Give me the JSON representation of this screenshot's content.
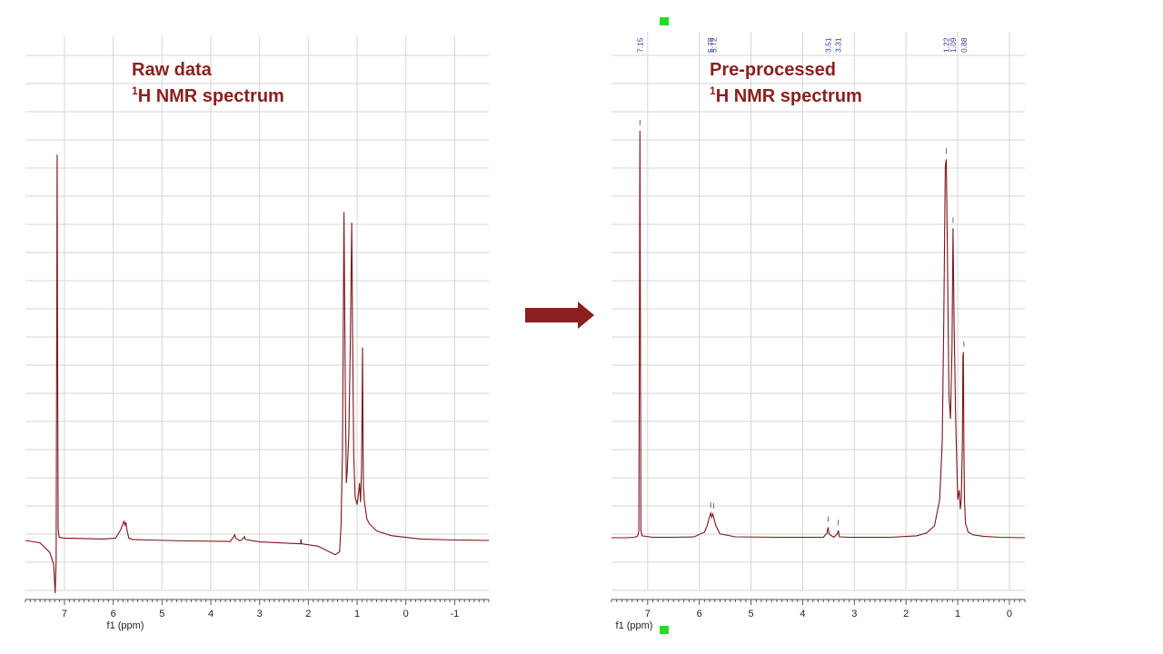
{
  "colors": {
    "spectrum": "#7b1418",
    "title": "#8b2020",
    "arrow": "#8b2020",
    "grid": "#d6d6d6",
    "peak_label": "#3a3aa0",
    "marker": "#22dd22"
  },
  "icons": {
    "arrow": "right-arrow-icon",
    "marker": "green-square-marker-icon"
  },
  "chart_data": [
    {
      "type": "line",
      "title_line1": "Raw data",
      "title_line2_sup": "1",
      "title_line2": "H NMR spectrum",
      "xlabel": "f1 (ppm)",
      "x_reversed": true,
      "xlim": [
        7.8,
        -1.7
      ],
      "ylim": [
        -12,
        100
      ],
      "xticks": [
        7,
        6,
        5,
        4,
        3,
        2,
        1,
        0,
        -1
      ],
      "xtick_labels": [
        "7",
        "6",
        "5",
        "4",
        "3",
        "2",
        "1",
        "0",
        "-1"
      ],
      "grid": true,
      "series": [
        {
          "x": [
            7.8,
            7.5,
            7.3,
            7.22,
            7.19,
            7.17,
            7.16,
            7.15,
            7.14,
            7.13,
            7.11,
            7.08,
            7.0,
            6.6,
            6.2,
            5.95,
            5.85,
            5.78,
            5.76,
            5.74,
            5.72,
            5.68,
            5.6,
            5.3,
            4.5,
            3.6,
            3.53,
            3.51,
            3.49,
            3.4,
            3.33,
            3.31,
            3.29,
            3.0,
            2.16,
            2.15,
            2.14,
            1.8,
            1.45,
            1.36,
            1.33,
            1.3,
            1.27,
            1.24,
            1.22,
            1.2,
            1.17,
            1.14,
            1.11,
            1.09,
            1.07,
            1.04,
            1.0,
            0.97,
            0.95,
            0.93,
            0.91,
            0.9,
            0.89,
            0.88,
            0.87,
            0.85,
            0.82,
            0.8,
            0.75,
            0.6,
            0.3,
            -0.3,
            -1.0,
            -1.7
          ],
          "y": [
            0.0,
            -0.5,
            -2.5,
            -5.0,
            -11.0,
            -4.0,
            40.0,
            80.6,
            40.0,
            2.5,
            0.7,
            0.6,
            0.5,
            0.4,
            0.3,
            0.5,
            2.2,
            4.0,
            3.2,
            3.8,
            2.2,
            0.5,
            0.2,
            0.1,
            -0.1,
            -0.2,
            0.8,
            1.2,
            0.5,
            -0.1,
            0.5,
            0.8,
            0.2,
            -0.3,
            -0.7,
            0.3,
            -0.7,
            -1.2,
            -3.0,
            -2.4,
            3.0,
            18.0,
            68.6,
            28.0,
            12.0,
            15.0,
            22.0,
            40.0,
            66.4,
            40.0,
            18.0,
            9.0,
            7.5,
            10.0,
            12.0,
            8.0,
            15.0,
            25.0,
            40.3,
            22.0,
            11.0,
            8.0,
            6.0,
            4.5,
            3.5,
            2.0,
            1.0,
            0.3,
            0.1,
            0.0
          ]
        }
      ]
    },
    {
      "type": "line",
      "title_line1": "Pre-processed",
      "title_line2_sup": "1",
      "title_line2": "H NMR spectrum",
      "xlabel": "f1 (ppm)",
      "x_reversed": true,
      "xlim": [
        7.7,
        -0.3
      ],
      "ylim": [
        -10,
        100
      ],
      "xticks": [
        7,
        6,
        5,
        4,
        3,
        2,
        1,
        0
      ],
      "xtick_labels": [
        "7",
        "6",
        "5",
        "4",
        "3",
        "2",
        "1",
        "0"
      ],
      "grid": true,
      "peak_labels": [
        "7.15",
        "5.78",
        "5.72",
        "3.51",
        "3.31",
        "1.22",
        "1.09",
        "0.88"
      ],
      "peak_positions": [
        7.15,
        5.78,
        5.72,
        3.51,
        3.31,
        1.22,
        1.09,
        0.88
      ],
      "series": [
        {
          "x": [
            7.7,
            7.4,
            7.25,
            7.19,
            7.17,
            7.16,
            7.15,
            7.14,
            7.13,
            7.11,
            6.9,
            6.5,
            6.1,
            5.9,
            5.85,
            5.8,
            5.78,
            5.76,
            5.74,
            5.72,
            5.68,
            5.6,
            5.3,
            4.5,
            3.6,
            3.53,
            3.51,
            3.49,
            3.4,
            3.33,
            3.31,
            3.29,
            3.1,
            2.3,
            1.8,
            1.6,
            1.45,
            1.35,
            1.3,
            1.27,
            1.24,
            1.22,
            1.2,
            1.17,
            1.14,
            1.11,
            1.09,
            1.07,
            1.04,
            1.0,
            0.97,
            0.95,
            0.93,
            0.91,
            0.9,
            0.89,
            0.88,
            0.87,
            0.85,
            0.82,
            0.8,
            0.7,
            0.5,
            0.2,
            -0.3
          ],
          "y": [
            0.0,
            0.0,
            0.1,
            0.4,
            1.5,
            40.0,
            85.5,
            40.0,
            1.5,
            0.4,
            0.1,
            0.1,
            0.2,
            1.2,
            2.5,
            4.5,
            5.2,
            4.3,
            5.0,
            4.2,
            2.5,
            0.8,
            0.2,
            0.1,
            0.1,
            1.0,
            2.2,
            0.8,
            0.1,
            0.8,
            1.5,
            0.2,
            0.1,
            0.1,
            0.4,
            1.0,
            2.5,
            8.0,
            20.0,
            45.0,
            78.0,
            79.5,
            60.0,
            30.0,
            25.0,
            40.0,
            65.0,
            45.0,
            25.0,
            8.0,
            10.0,
            6.0,
            8.0,
            20.0,
            38.0,
            39.0,
            18.0,
            8.0,
            3.0,
            2.0,
            1.2,
            0.6,
            0.3,
            0.1,
            0.0
          ]
        }
      ]
    }
  ]
}
